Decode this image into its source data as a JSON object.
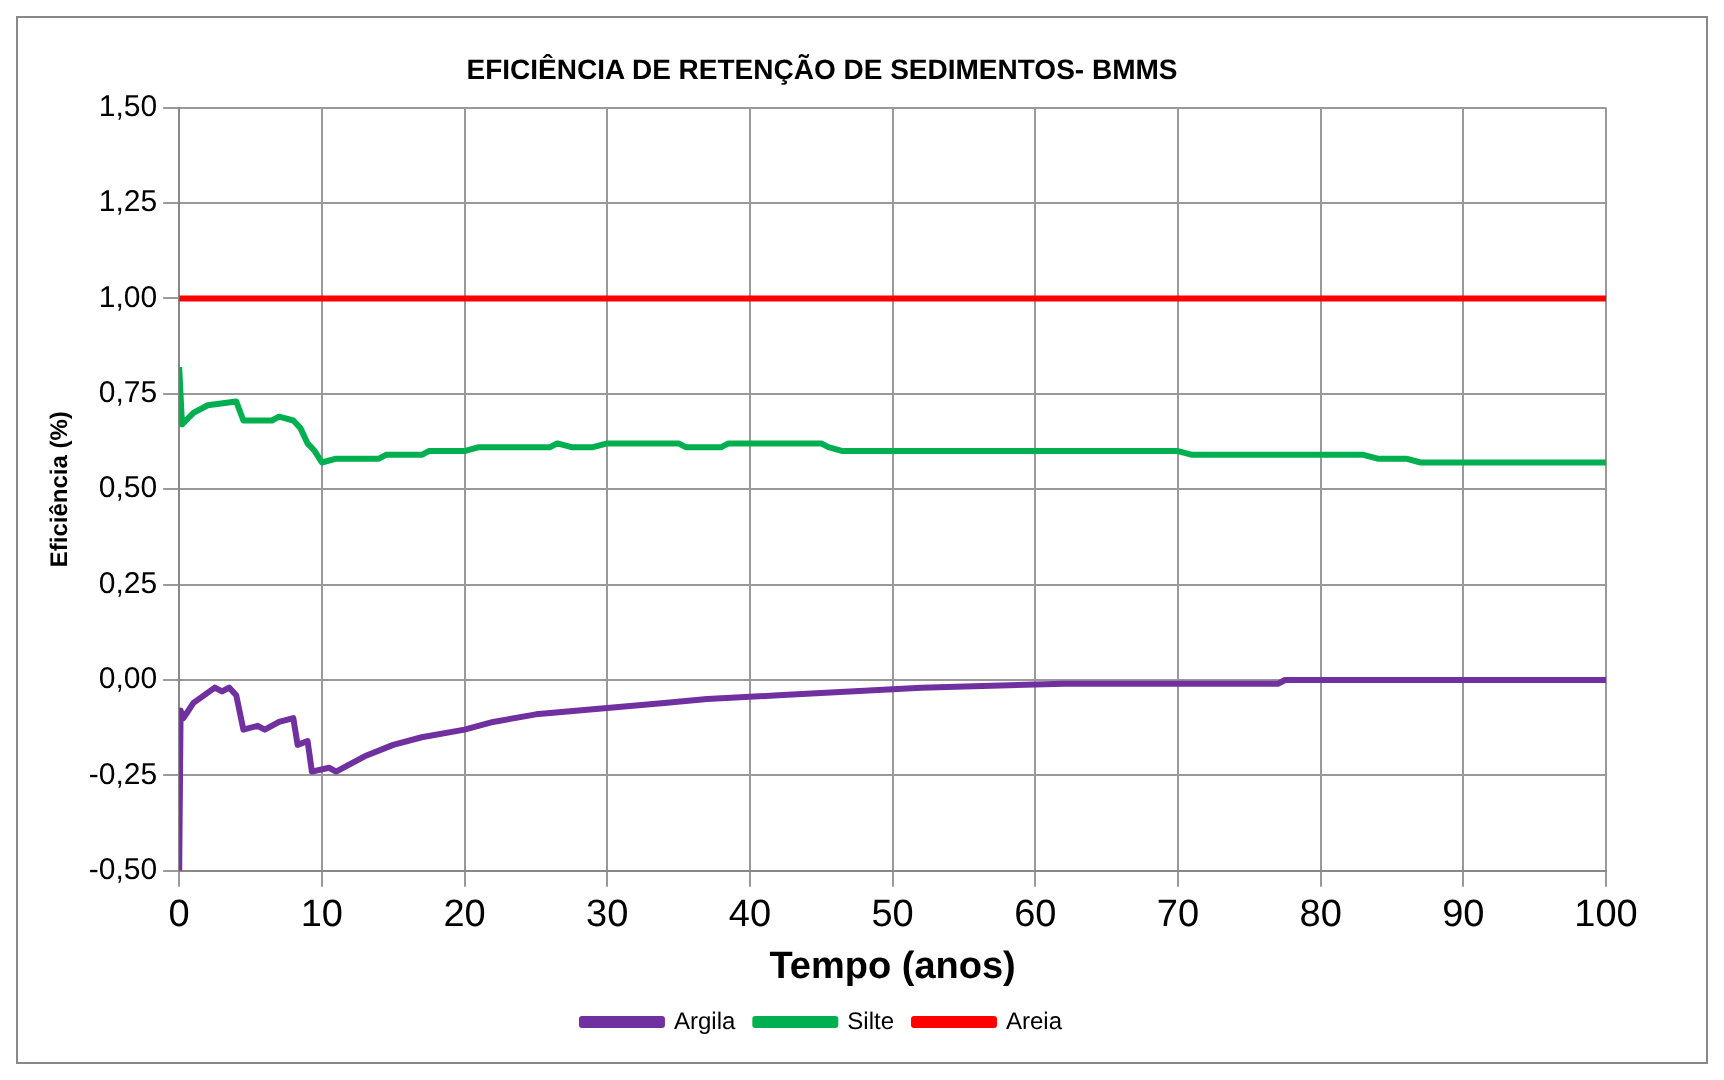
{
  "chart_data": {
    "type": "line",
    "title": "EFICIÊNCIA DE RETENÇÃO DE SEDIMENTOS- BMMS",
    "xlabel": "Tempo (anos)",
    "ylabel": "Eficiência (%)",
    "xlim": [
      0,
      100
    ],
    "xticks": [
      0,
      10,
      20,
      30,
      40,
      50,
      60,
      70,
      80,
      90,
      100
    ],
    "ylim": [
      -0.5,
      1.5
    ],
    "yticks": [
      {
        "value": -0.5,
        "label": "-0,50"
      },
      {
        "value": -0.25,
        "label": "-0,25"
      },
      {
        "value": 0,
        "label": "0,00"
      },
      {
        "value": 0.25,
        "label": "0,25"
      },
      {
        "value": 0.5,
        "label": "0,50"
      },
      {
        "value": 0.75,
        "label": "0,75"
      },
      {
        "value": 1,
        "label": "1,00"
      },
      {
        "value": 1.25,
        "label": "1,25"
      },
      {
        "value": 1.5,
        "label": "1,50"
      }
    ],
    "grid": true,
    "legend": "bottom",
    "marker": "none",
    "line_style": "solid",
    "series": [
      {
        "name": "Argila",
        "color": "#7030a0",
        "x": [
          0,
          0.1,
          0.3,
          1,
          2.5,
          3,
          3.5,
          4,
          4.5,
          5.5,
          6,
          7,
          8,
          8.3,
          9,
          9.3,
          10.5,
          11,
          13,
          15,
          17,
          20,
          22,
          25,
          28,
          31,
          34,
          37,
          42,
          47,
          52,
          62,
          77,
          77.5,
          100
        ],
        "values": [
          -0.5,
          -0.08,
          -0.1,
          -0.06,
          -0.02,
          -0.03,
          -0.02,
          -0.04,
          -0.13,
          -0.12,
          -0.13,
          -0.11,
          -0.1,
          -0.17,
          -0.16,
          -0.24,
          -0.23,
          -0.24,
          -0.2,
          -0.17,
          -0.15,
          -0.13,
          -0.11,
          -0.09,
          -0.08,
          -0.07,
          -0.06,
          -0.05,
          -0.04,
          -0.03,
          -0.02,
          -0.01,
          -0.01,
          0,
          0
        ]
      },
      {
        "name": "Silte",
        "color": "#00b050",
        "x": [
          0,
          0.2,
          1,
          2,
          4,
          4.5,
          6.5,
          7,
          8,
          8.5,
          9,
          9.5,
          10,
          11,
          14,
          14.5,
          17,
          17.5,
          20,
          21,
          26,
          26.5,
          27.5,
          29,
          30,
          35,
          35.5,
          38,
          38.5,
          45,
          45.5,
          46.5,
          70,
          71,
          83,
          84,
          86,
          87,
          100
        ],
        "values": [
          0.82,
          0.67,
          0.7,
          0.72,
          0.73,
          0.68,
          0.68,
          0.69,
          0.68,
          0.66,
          0.62,
          0.6,
          0.57,
          0.58,
          0.58,
          0.59,
          0.59,
          0.6,
          0.6,
          0.61,
          0.61,
          0.62,
          0.61,
          0.61,
          0.62,
          0.62,
          0.61,
          0.61,
          0.62,
          0.62,
          0.61,
          0.6,
          0.6,
          0.59,
          0.59,
          0.58,
          0.58,
          0.57,
          0.57
        ]
      },
      {
        "name": "Areia",
        "color": "#ff0000",
        "x": [
          0,
          100
        ],
        "values": [
          1,
          1
        ]
      }
    ]
  }
}
